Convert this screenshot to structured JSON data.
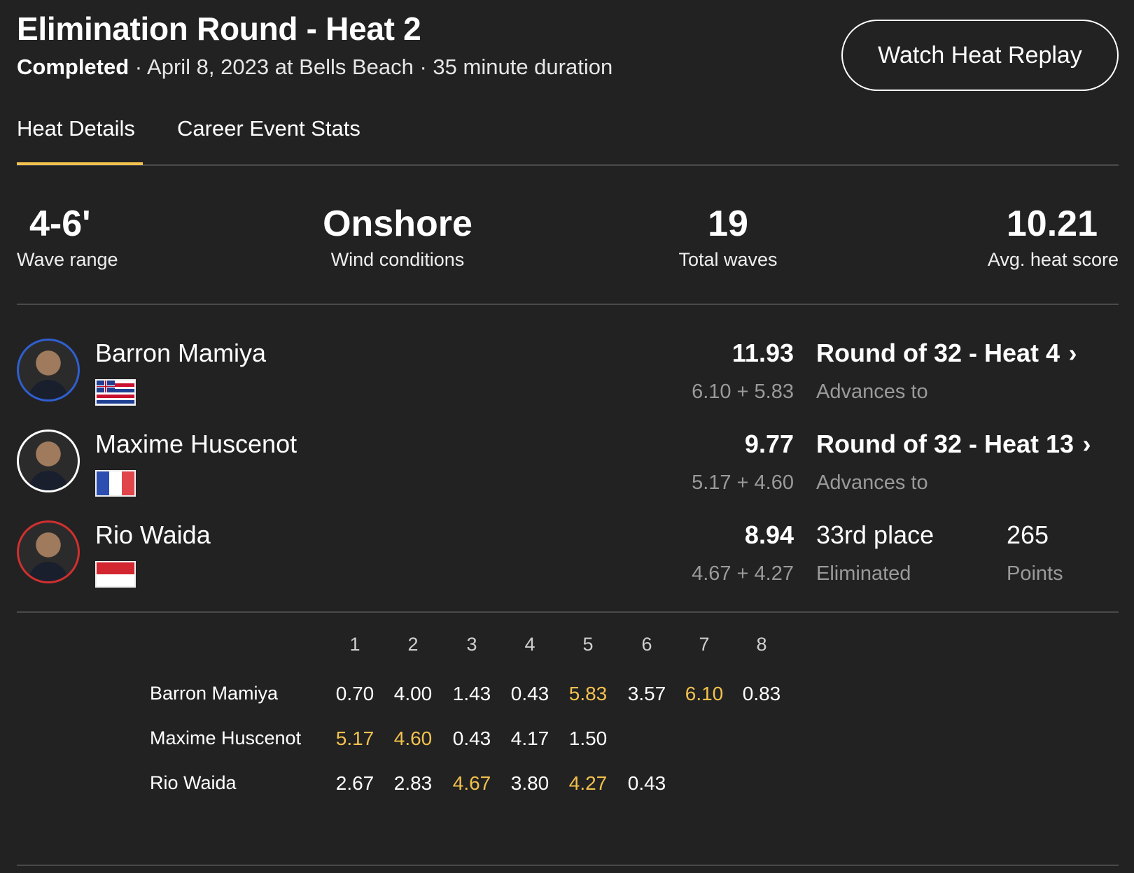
{
  "header": {
    "title": "Elimination Round - Heat 2",
    "status": "Completed",
    "meta": " · April 8, 2023 at Bells Beach · 35 minute duration",
    "replay_label": "Watch Heat Replay"
  },
  "tabs": [
    {
      "label": "Heat Details",
      "active": true
    },
    {
      "label": "Career Event Stats",
      "active": false
    }
  ],
  "colors": {
    "accent": "#f2c14e",
    "background": "#222222",
    "muted": "#9a9a9a"
  },
  "stats": [
    {
      "value": "4-6'",
      "label": "Wave range"
    },
    {
      "value": "Onshore",
      "label": "Wind conditions"
    },
    {
      "value": "19",
      "label": "Total waves"
    },
    {
      "value": "10.21",
      "label": "Avg. heat score"
    }
  ],
  "surfers": [
    {
      "name": "Barron Mamiya",
      "flag": "hawaii-flag",
      "ring_color": "#2f5fd0",
      "total": "11.93",
      "breakdown": "6.10 + 5.83",
      "result": "Round of 32 - Heat 4",
      "result_sub": "Advances to",
      "chevron": "›"
    },
    {
      "name": "Maxime Huscenot",
      "flag": "france-flag",
      "ring_color": "#ffffff",
      "total": "9.77",
      "breakdown": "5.17 + 4.60",
      "result": "Round of 32 - Heat 13",
      "result_sub": "Advances to",
      "chevron": "›"
    },
    {
      "name": "Rio Waida",
      "flag": "indonesia-flag",
      "ring_color": "#d0302f",
      "total": "8.94",
      "breakdown": "4.67 + 4.27",
      "result": "33rd place",
      "result_sub": "Eliminated",
      "points": "265",
      "points_label": "Points"
    }
  ],
  "waves": {
    "headers": [
      "1",
      "2",
      "3",
      "4",
      "5",
      "6",
      "7",
      "8"
    ],
    "rows": [
      {
        "name": "Barron Mamiya",
        "scores": [
          "0.70",
          "4.00",
          "1.43",
          "0.43",
          "5.83",
          "3.57",
          "6.10",
          "0.83"
        ],
        "best": [
          4,
          6
        ]
      },
      {
        "name": "Maxime Huscenot",
        "scores": [
          "5.17",
          "4.60",
          "0.43",
          "4.17",
          "1.50"
        ],
        "best": [
          0,
          1
        ]
      },
      {
        "name": "Rio Waida",
        "scores": [
          "2.67",
          "2.83",
          "4.67",
          "3.80",
          "4.27",
          "0.43"
        ],
        "best": [
          2,
          4
        ]
      }
    ]
  }
}
